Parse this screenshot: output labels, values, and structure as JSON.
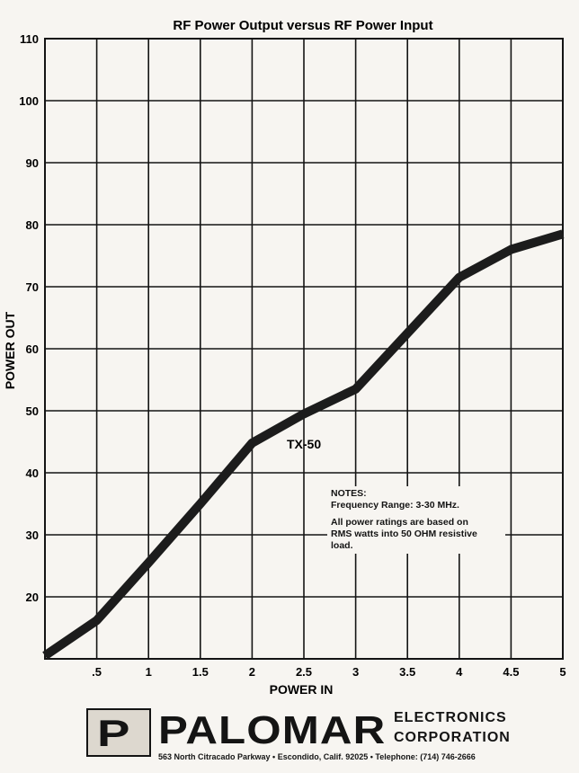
{
  "chart_data": {
    "type": "line",
    "title": "RF Power Output versus RF Power Input",
    "xlabel": "POWER IN",
    "ylabel": "POWER OUT",
    "xlim": [
      0,
      5
    ],
    "ylim": [
      10,
      110
    ],
    "x_ticks": [
      ".5",
      "1",
      "1.5",
      "2",
      "2.5",
      "3",
      "3.5",
      "4",
      "4.5",
      "5"
    ],
    "y_ticks": [
      "20",
      "30",
      "40",
      "50",
      "60",
      "70",
      "80",
      "90",
      "100",
      "110"
    ],
    "grid": true,
    "series": [
      {
        "name": "TX-50",
        "color": "#1c1c1c",
        "x": [
          0,
          0.5,
          1,
          1.5,
          2,
          2.5,
          3,
          3.5,
          4,
          4.5,
          5
        ],
        "y": [
          10.5,
          16.2,
          25.5,
          35.0,
          44.8,
          49.5,
          53.5,
          62.5,
          71.5,
          76.0,
          78.5
        ]
      }
    ]
  },
  "notes": {
    "heading": "NOTES:",
    "line1": "Frequency Range: 3-30 MHz.",
    "line2": "All power ratings are based on",
    "line3": "RMS watts into 50 OHM resistive",
    "line4": "load."
  },
  "footer": {
    "logo_letter": "P",
    "brand": "PALOMAR",
    "suffix_line1": "ELECTRONICS",
    "suffix_line2": "CORPORATION",
    "address": "563 North Citracado Parkway • Escondido, Calif. 92025 • Telephone: (714) 746-2666"
  },
  "colors": {
    "paper": "#f7f5f1",
    "ink": "#141414"
  }
}
